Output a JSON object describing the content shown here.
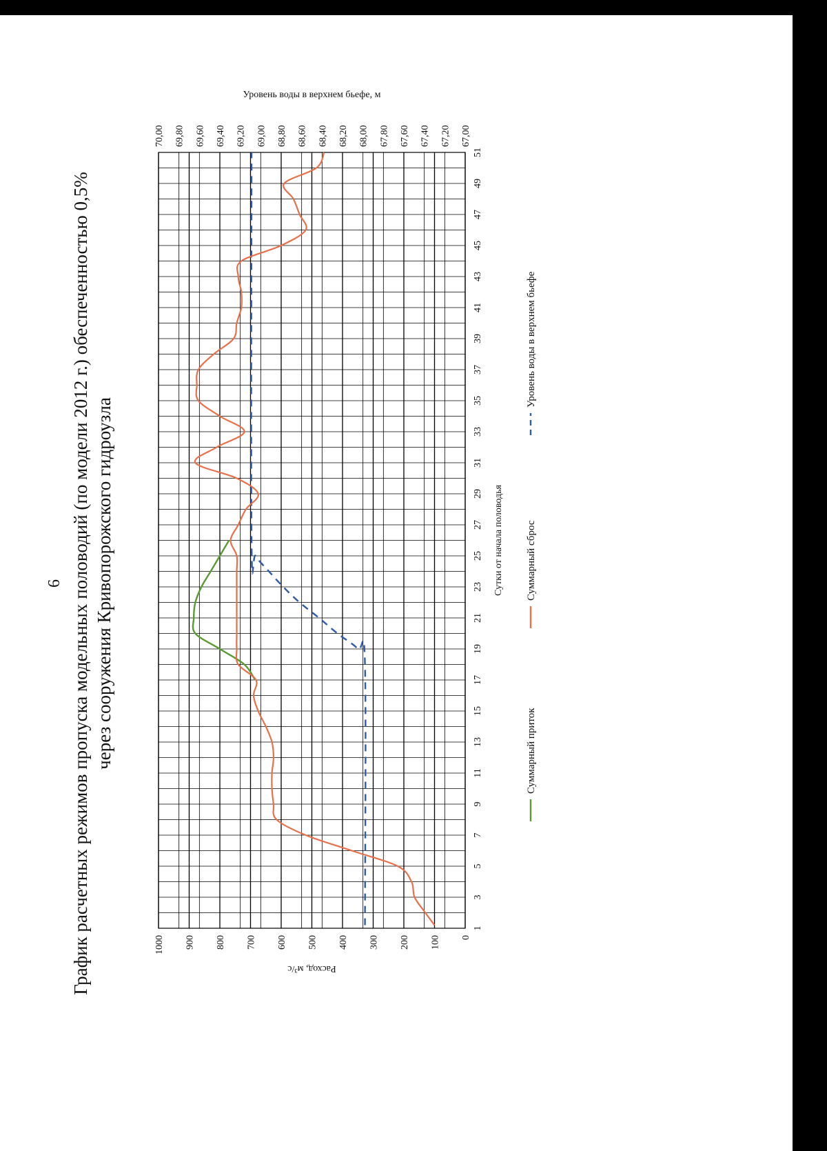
{
  "page_number": "6",
  "title_line1": "График расчетных режимов пропуска модельных половодий (по модели 2012 г.) обеспеченностью 0,5%",
  "title_line2": "через сооружения Кривопорожского гидроузла",
  "colors": {
    "inflow": "#5a9a32",
    "discharge": "#e8704a",
    "level": "#2e5aa8",
    "grid": "#000000"
  },
  "chart_data": {
    "type": "line",
    "title": "График расчетных режимов пропуска модельных половодий (по модели 2012 г.) обеспеченностью 0,5% через сооружения Кривопорожского гидроузла",
    "xlabel": "Сутки от начала половодья",
    "ylabel": "Расход, м³/с",
    "y2label": "Уровень воды в верхнем бьефе, м",
    "xlim": [
      1,
      51
    ],
    "ylim": [
      0,
      1000
    ],
    "y2lim": [
      67.0,
      70.0
    ],
    "x_ticks": [
      "1",
      "3",
      "5",
      "7",
      "9",
      "11",
      "13",
      "15",
      "17",
      "19",
      "21",
      "23",
      "25",
      "27",
      "29",
      "31",
      "33",
      "35",
      "37",
      "39",
      "41",
      "43",
      "45",
      "47",
      "49",
      "51"
    ],
    "y_ticks": [
      "0",
      "100",
      "200",
      "300",
      "400",
      "500",
      "600",
      "700",
      "800",
      "900",
      "1000"
    ],
    "y2_ticks": [
      "67,00",
      "67,20",
      "67,40",
      "67,60",
      "67,80",
      "68,00",
      "68,20",
      "68,40",
      "68,60",
      "68,80",
      "69,00",
      "69,20",
      "69,40",
      "69,60",
      "69,80",
      "70,00"
    ],
    "grid": true,
    "legend_position": "bottom",
    "series": [
      {
        "name": "Суммарный приток",
        "axis": "left",
        "style": "solid",
        "points": [
          [
            17,
            685
          ],
          [
            18,
            720
          ],
          [
            19,
            800
          ],
          [
            20,
            880
          ],
          [
            21,
            885
          ],
          [
            22,
            880
          ],
          [
            23,
            860
          ],
          [
            24,
            830
          ],
          [
            25,
            800
          ],
          [
            26,
            770
          ]
        ]
      },
      {
        "name": "Суммарный сброс",
        "axis": "left",
        "style": "solid",
        "points": [
          [
            1.2,
            100
          ],
          [
            2,
            130
          ],
          [
            3,
            165
          ],
          [
            4,
            175
          ],
          [
            5,
            220
          ],
          [
            6,
            370
          ],
          [
            7,
            520
          ],
          [
            8,
            615
          ],
          [
            9,
            625
          ],
          [
            10,
            630
          ],
          [
            11,
            630
          ],
          [
            12,
            625
          ],
          [
            13,
            630
          ],
          [
            14,
            650
          ],
          [
            15,
            675
          ],
          [
            16,
            690
          ],
          [
            17,
            682
          ],
          [
            18,
            740
          ],
          [
            19,
            745
          ],
          [
            20,
            745
          ],
          [
            21,
            745
          ],
          [
            22,
            745
          ],
          [
            23,
            745
          ],
          [
            24,
            745
          ],
          [
            25,
            745
          ],
          [
            26,
            765
          ],
          [
            27,
            740
          ],
          [
            28,
            715
          ],
          [
            29,
            675
          ],
          [
            30,
            745
          ],
          [
            31,
            880
          ],
          [
            32,
            810
          ],
          [
            33,
            720
          ],
          [
            34,
            800
          ],
          [
            35,
            870
          ],
          [
            36,
            875
          ],
          [
            37,
            870
          ],
          [
            38,
            820
          ],
          [
            39,
            755
          ],
          [
            40,
            745
          ],
          [
            41,
            730
          ],
          [
            42,
            730
          ],
          [
            43,
            740
          ],
          [
            44,
            730
          ],
          [
            45,
            600
          ],
          [
            46,
            520
          ],
          [
            47,
            540
          ],
          [
            48,
            560
          ],
          [
            49,
            590
          ],
          [
            50,
            485
          ],
          [
            51,
            460
          ]
        ]
      },
      {
        "name": "Уровень воды в верхнем бьефе",
        "axis": "right",
        "style": "dashed",
        "points": [
          [
            1.2,
            67.98
          ],
          [
            18,
            67.98
          ],
          [
            19,
            68.05
          ],
          [
            20,
            68.25
          ],
          [
            21,
            68.43
          ],
          [
            22,
            68.62
          ],
          [
            23,
            68.78
          ],
          [
            24,
            68.92
          ],
          [
            25,
            69.05
          ],
          [
            26,
            69.09
          ],
          [
            51,
            69.09
          ]
        ]
      }
    ]
  }
}
